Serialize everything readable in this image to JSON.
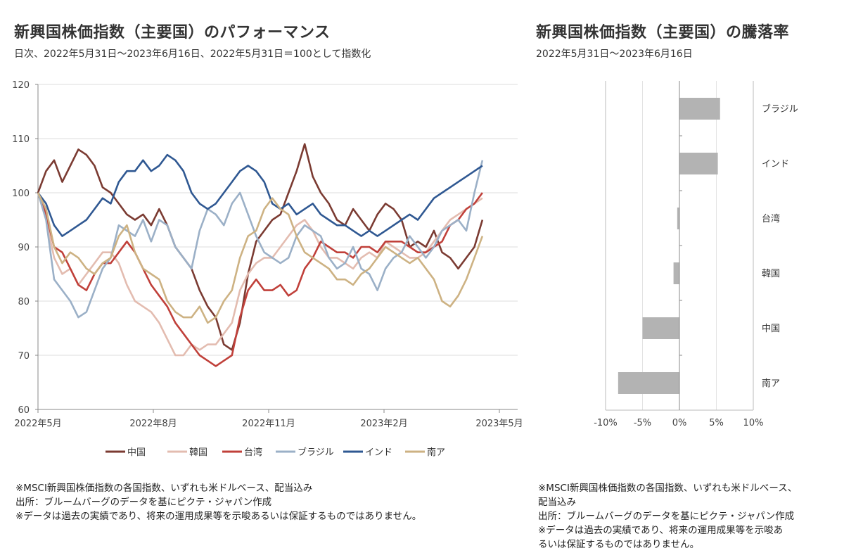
{
  "left": {
    "title": "新興国株価指数（主要国）のパフォーマンス",
    "subtitle": "日次、2022年5月31日～2023年6月16日、2022年5月31日＝100として指数化",
    "notes": [
      "※MSCI新興国株価指数の各国指数、いずれも米ドルベース、配当込み",
      "出所：ブルームバーグのデータを基にピクテ・ジャパン作成",
      "※データは過去の実績であり、将来の運用成果等を示唆あるいは保証するものではありません。"
    ]
  },
  "right": {
    "title": "新興国株価指数（主要国）の騰落率",
    "subtitle": "2022年5月31日～2023年6月16日",
    "notes": [
      "※MSCI新興国株価指数の各国指数、いずれも米ドルベース、",
      "配当込み",
      "出所：ブルームバーグのデータを基にピクテ・ジャパン作成",
      "※データは過去の実績であり、将来の運用成果等を示唆あ",
      "るいは保証するものではありません。"
    ]
  },
  "chart_data": [
    {
      "type": "line",
      "title": "新興国株価指数（主要国）のパフォーマンス",
      "xlabel": "",
      "ylabel": "",
      "ylim": [
        60,
        120
      ],
      "yticks": [
        60,
        70,
        80,
        90,
        100,
        110,
        120
      ],
      "xticks": [
        "2022年5月",
        "2022年8月",
        "2022年11月",
        "2023年2月",
        "2023年5月"
      ],
      "xtick_months": [
        0,
        3,
        6,
        9,
        12
      ],
      "x_start_month": 0.97,
      "x_end_month": 12.53,
      "grid": true,
      "legend": "bottom",
      "series": [
        {
          "name": "中国",
          "color": "#7b3b32",
          "values": [
            100,
            104,
            106,
            102,
            105,
            108,
            107,
            105,
            101,
            100,
            98,
            96,
            95,
            96,
            94,
            97,
            94,
            90,
            88,
            86,
            82,
            79,
            77,
            72,
            71,
            76,
            85,
            91,
            93,
            95,
            96,
            100,
            104,
            109,
            103,
            100,
            98,
            95,
            94,
            97,
            95,
            93,
            96,
            98,
            97,
            95,
            90,
            91,
            90,
            93,
            89,
            88,
            86,
            88,
            90,
            95
          ]
        },
        {
          "name": "韓国",
          "color": "#e3bcb0",
          "values": [
            100,
            95,
            88,
            85,
            86,
            83,
            85,
            87,
            89,
            89,
            87,
            83,
            80,
            79,
            78,
            76,
            73,
            70,
            70,
            72,
            71,
            72,
            72,
            74,
            76,
            82,
            85,
            87,
            88,
            88,
            90,
            92,
            94,
            95,
            93,
            90,
            88,
            88,
            87,
            86,
            88,
            89,
            88,
            91,
            90,
            89,
            88,
            88,
            89,
            91,
            93,
            95,
            96,
            97,
            98,
            99
          ]
        },
        {
          "name": "台湾",
          "color": "#c0403a",
          "values": [
            100,
            96,
            90,
            89,
            86,
            83,
            82,
            85,
            87,
            87,
            89,
            91,
            89,
            86,
            83,
            81,
            79,
            76,
            74,
            72,
            70,
            69,
            68,
            69,
            70,
            77,
            82,
            84,
            82,
            82,
            83,
            81,
            82,
            86,
            88,
            91,
            90,
            89,
            89,
            88,
            90,
            90,
            89,
            91,
            91,
            91,
            90,
            89,
            89,
            90,
            91,
            94,
            95,
            97,
            98,
            100
          ]
        },
        {
          "name": "ブラジル",
          "color": "#9bb0c7",
          "values": [
            100,
            95,
            84,
            82,
            80,
            77,
            78,
            82,
            86,
            88,
            94,
            93,
            92,
            95,
            91,
            95,
            94,
            90,
            88,
            86,
            93,
            97,
            96,
            94,
            98,
            100,
            96,
            92,
            89,
            88,
            87,
            88,
            92,
            94,
            93,
            92,
            88,
            86,
            87,
            90,
            86,
            85,
            82,
            86,
            88,
            89,
            92,
            90,
            88,
            90,
            93,
            94,
            95,
            93,
            100,
            106
          ]
        },
        {
          "name": "インド",
          "color": "#2f5892",
          "values": [
            100,
            98,
            94,
            92,
            93,
            94,
            95,
            97,
            99,
            98,
            102,
            104,
            104,
            106,
            104,
            105,
            107,
            106,
            104,
            100,
            98,
            97,
            98,
            100,
            102,
            104,
            105,
            104,
            102,
            98,
            97,
            98,
            96,
            97,
            98,
            96,
            95,
            94,
            94,
            93,
            92,
            93,
            92,
            93,
            94,
            95,
            96,
            95,
            97,
            99,
            100,
            101,
            102,
            103,
            104,
            105
          ]
        },
        {
          "name": "南ア",
          "color": "#cdb283",
          "values": [
            100,
            97,
            90,
            87,
            89,
            88,
            86,
            85,
            87,
            88,
            92,
            94,
            89,
            86,
            85,
            84,
            80,
            78,
            77,
            77,
            79,
            76,
            77,
            80,
            82,
            88,
            92,
            93,
            97,
            99,
            97,
            96,
            92,
            89,
            88,
            87,
            86,
            84,
            84,
            83,
            85,
            86,
            88,
            90,
            89,
            88,
            87,
            88,
            86,
            84,
            80,
            79,
            81,
            84,
            88,
            92
          ]
        }
      ]
    },
    {
      "type": "bar",
      "orientation": "horizontal",
      "title": "新興国株価指数（主要国）の騰落率",
      "categories": [
        "ブラジル",
        "インド",
        "台湾",
        "韓国",
        "中国",
        "南ア"
      ],
      "values": [
        5.5,
        5.2,
        -0.3,
        -0.8,
        -5.0,
        -8.3
      ],
      "unit": "%",
      "xlim": [
        -10,
        10
      ],
      "xticks": [
        "-10%",
        "-5%",
        "0%",
        "5%",
        "10%"
      ],
      "xtick_values": [
        -10,
        -5,
        0,
        5,
        10
      ],
      "bar_color": "#b3b3b3",
      "grid": true
    }
  ]
}
